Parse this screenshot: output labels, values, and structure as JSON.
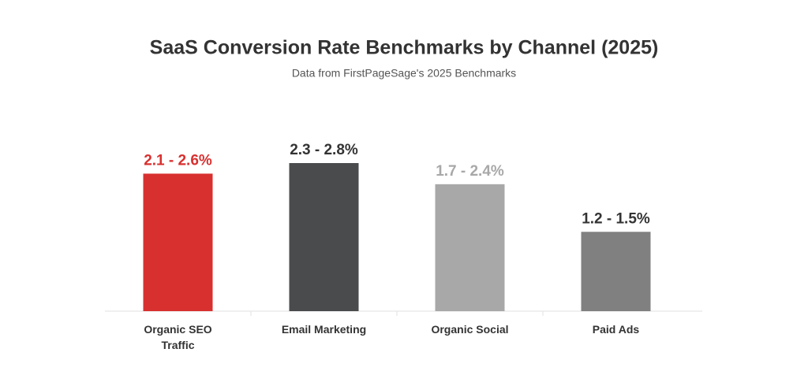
{
  "chart_data": {
    "type": "bar",
    "title": "SaaS Conversion Rate Benchmarks by Channel (2025)",
    "subtitle": "Data from FirstPageSage's 2025 Benchmarks",
    "categories": [
      "Organic SEO Traffic",
      "Email Marketing",
      "Organic Social",
      "Paid Ads"
    ],
    "low": [
      2.1,
      2.3,
      1.7,
      1.2
    ],
    "high": [
      2.6,
      2.8,
      2.4,
      1.5
    ],
    "value_labels": [
      "2.1 - 2.6%",
      "2.3 - 2.8%",
      "1.7 - 2.4%",
      "1.2 - 1.5%"
    ],
    "colors": [
      "#d8302f",
      "#4a4b4d",
      "#a8a8a8",
      "#808080"
    ],
    "label_colors": [
      "#d8302f",
      "#333333",
      "#a8a8a8",
      "#333333"
    ]
  }
}
